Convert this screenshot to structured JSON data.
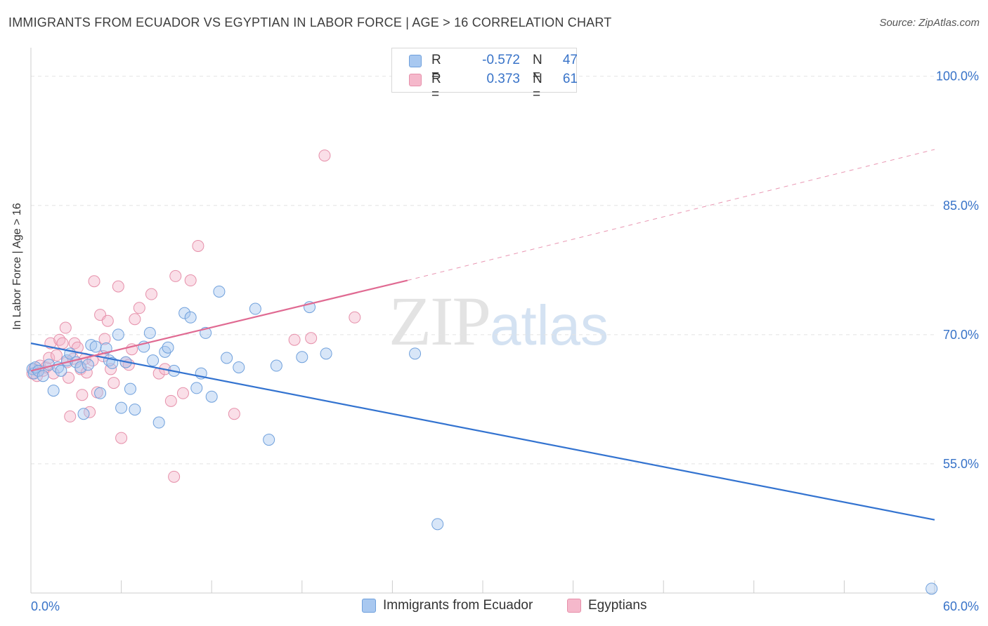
{
  "title": "IMMIGRANTS FROM ECUADOR VS EGYPTIAN IN LABOR FORCE | AGE > 16 CORRELATION CHART",
  "source": "Source: ZipAtlas.com",
  "watermark": {
    "zip": "ZIP",
    "atlas": "atlas"
  },
  "legend": {
    "series1": {
      "r_label": "R =",
      "r_value": "-0.572",
      "n_label": "N =",
      "n_value": "47",
      "color": "#a8c8f0"
    },
    "series2": {
      "r_label": "R =",
      "r_value": "0.373",
      "n_label": "N =",
      "n_value": "61",
      "color": "#f5b8cb"
    }
  },
  "bottom_legend": {
    "series1": "Immigrants from Ecuador",
    "series2": "Egyptians"
  },
  "chart_data": {
    "type": "scatter",
    "title": "IMMIGRANTS FROM ECUADOR VS EGYPTIAN IN LABOR FORCE | AGE > 16 CORRELATION CHART",
    "xlabel": "",
    "ylabel": "In Labor Force | Age > 16",
    "xlim": [
      0,
      60
    ],
    "ylim": [
      40,
      102.5
    ],
    "x_tick_labels": [
      "0.0%",
      "60.0%"
    ],
    "y_ticks": [
      55,
      70,
      85,
      100
    ],
    "y_tick_labels": [
      "55.0%",
      "70.0%",
      "85.0%",
      "100.0%"
    ],
    "grid": true,
    "colors": {
      "ecuador_fill": "#a8c8f0",
      "ecuador_stroke": "#6fa0dc",
      "ecuador_line": "#3373d0",
      "egypt_fill": "#f5b8cb",
      "egypt_stroke": "#e690aa",
      "egypt_line": "#e06a92",
      "tick_label": "#3873c8"
    },
    "series": [
      {
        "name": "Immigrants from Ecuador",
        "points": [
          [
            0.1,
            66.0
          ],
          [
            0.2,
            65.5
          ],
          [
            0.3,
            66.2
          ],
          [
            0.5,
            65.8
          ],
          [
            0.8,
            65.2
          ],
          [
            1.2,
            66.5
          ],
          [
            1.5,
            63.5
          ],
          [
            1.8,
            66.2
          ],
          [
            2.0,
            65.8
          ],
          [
            2.4,
            67.0
          ],
          [
            2.6,
            67.8
          ],
          [
            3.0,
            66.8
          ],
          [
            3.3,
            66.2
          ],
          [
            3.5,
            60.8
          ],
          [
            3.8,
            66.5
          ],
          [
            4.0,
            68.8
          ],
          [
            4.3,
            68.6
          ],
          [
            4.6,
            63.2
          ],
          [
            5.0,
            68.4
          ],
          [
            5.2,
            67.0
          ],
          [
            5.4,
            66.7
          ],
          [
            5.8,
            70.0
          ],
          [
            6.0,
            61.5
          ],
          [
            6.3,
            66.8
          ],
          [
            6.6,
            63.7
          ],
          [
            6.9,
            61.3
          ],
          [
            7.5,
            68.6
          ],
          [
            7.9,
            70.2
          ],
          [
            8.1,
            67.0
          ],
          [
            8.5,
            59.8
          ],
          [
            8.9,
            68.0
          ],
          [
            9.1,
            68.5
          ],
          [
            9.5,
            65.8
          ],
          [
            10.2,
            72.5
          ],
          [
            10.6,
            72.0
          ],
          [
            11.0,
            63.8
          ],
          [
            11.3,
            65.5
          ],
          [
            11.6,
            70.2
          ],
          [
            12.0,
            62.8
          ],
          [
            12.5,
            75.0
          ],
          [
            13.0,
            67.3
          ],
          [
            13.8,
            66.2
          ],
          [
            14.9,
            73.0
          ],
          [
            16.3,
            66.4
          ],
          [
            15.8,
            57.8
          ],
          [
            18.0,
            67.4
          ],
          [
            18.5,
            73.2
          ],
          [
            19.6,
            67.8
          ],
          [
            25.5,
            67.8
          ],
          [
            27.0,
            48.0
          ],
          [
            59.8,
            40.5
          ]
        ]
      },
      {
        "name": "Egyptians",
        "points": [
          [
            0.1,
            65.5
          ],
          [
            0.2,
            66.0
          ],
          [
            0.4,
            65.2
          ],
          [
            0.6,
            66.4
          ],
          [
            0.8,
            65.8
          ],
          [
            1.0,
            66.2
          ],
          [
            1.2,
            67.3
          ],
          [
            1.3,
            69.0
          ],
          [
            1.5,
            65.5
          ],
          [
            1.7,
            67.6
          ],
          [
            1.9,
            69.4
          ],
          [
            2.1,
            69.0
          ],
          [
            2.3,
            70.8
          ],
          [
            2.4,
            66.8
          ],
          [
            2.5,
            65.0
          ],
          [
            2.6,
            60.5
          ],
          [
            2.8,
            67.2
          ],
          [
            2.9,
            69.0
          ],
          [
            3.1,
            68.5
          ],
          [
            3.3,
            66.0
          ],
          [
            3.4,
            63.0
          ],
          [
            3.6,
            67.2
          ],
          [
            3.7,
            65.6
          ],
          [
            3.9,
            61.0
          ],
          [
            4.1,
            67.0
          ],
          [
            4.2,
            76.2
          ],
          [
            4.4,
            63.3
          ],
          [
            4.6,
            72.3
          ],
          [
            4.8,
            67.5
          ],
          [
            4.9,
            69.5
          ],
          [
            5.1,
            71.6
          ],
          [
            5.3,
            66.0
          ],
          [
            5.5,
            64.4
          ],
          [
            5.8,
            75.6
          ],
          [
            6.0,
            58.0
          ],
          [
            6.3,
            66.8
          ],
          [
            6.5,
            66.5
          ],
          [
            6.7,
            68.3
          ],
          [
            6.9,
            71.8
          ],
          [
            7.2,
            73.1
          ],
          [
            8.0,
            74.7
          ],
          [
            8.5,
            65.5
          ],
          [
            8.9,
            66.0
          ],
          [
            9.3,
            62.3
          ],
          [
            9.5,
            53.5
          ],
          [
            9.6,
            76.8
          ],
          [
            10.1,
            63.2
          ],
          [
            10.6,
            76.3
          ],
          [
            11.1,
            80.3
          ],
          [
            13.5,
            60.8
          ],
          [
            17.5,
            69.4
          ],
          [
            18.6,
            69.6
          ],
          [
            19.5,
            90.8
          ],
          [
            21.5,
            72.0
          ]
        ]
      }
    ],
    "trend_lines": [
      {
        "name": "Immigrants from Ecuador",
        "x0": 0,
        "y0": 69.0,
        "x1": 60,
        "y1": 48.5,
        "style": "solid"
      },
      {
        "name": "Egyptians",
        "x0": 0,
        "y0": 65.8,
        "x1": 25,
        "y1": 76.3,
        "style": "solid"
      },
      {
        "name": "Egyptians",
        "x0": 25,
        "y0": 76.3,
        "x1": 60,
        "y1": 91.5,
        "style": "dashed"
      }
    ]
  }
}
